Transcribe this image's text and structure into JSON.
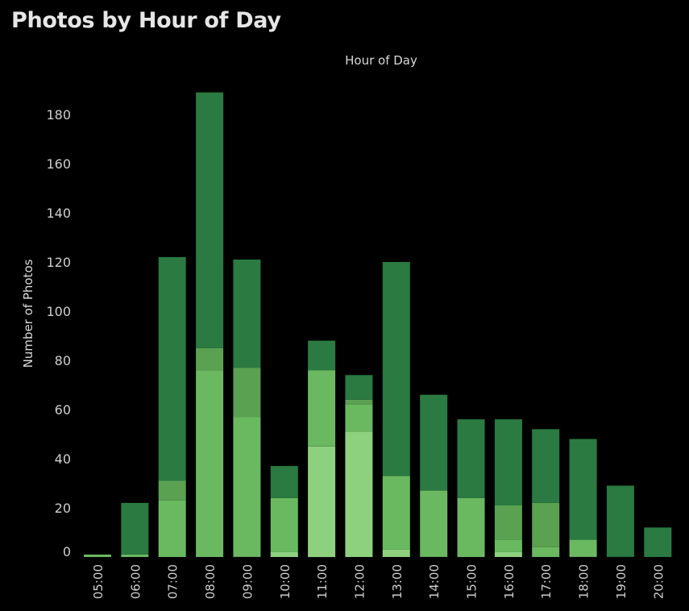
{
  "title": "Photos by Hour of Day",
  "chart_data": {
    "type": "bar",
    "stacked": true,
    "title": "Photos by Hour of Day",
    "xlabel": "Hour of Day",
    "ylabel": "Number of Photos",
    "ylim": [
      0,
      190
    ],
    "yticks": [
      0,
      20,
      40,
      60,
      80,
      100,
      120,
      140,
      160,
      180
    ],
    "grid": false,
    "legend": "none",
    "categories": [
      "05:00",
      "06:00",
      "07:00",
      "08:00",
      "09:00",
      "10:00",
      "11:00",
      "12:00",
      "13:00",
      "14:00",
      "15:00",
      "16:00",
      "17:00",
      "18:00",
      "19:00",
      "20:00"
    ],
    "series": [
      {
        "color": "#8dd17e",
        "values": [
          0,
          0,
          0,
          0,
          0,
          2,
          45,
          51,
          3,
          0,
          0,
          2,
          0,
          0,
          0,
          0
        ]
      },
      {
        "color": "#6ab961",
        "values": [
          1,
          1,
          23,
          76,
          57,
          22,
          31,
          11,
          30,
          27,
          24,
          5,
          4,
          7,
          0,
          0
        ]
      },
      {
        "color": "#5aa152",
        "values": [
          0,
          0,
          8,
          9,
          20,
          0,
          0,
          2,
          0,
          0,
          0,
          14,
          18,
          0,
          0,
          0
        ]
      },
      {
        "color": "#2a7a41",
        "values": [
          0,
          21,
          91,
          104,
          44,
          13,
          12,
          10,
          87,
          39,
          32,
          35,
          30,
          41,
          29,
          12
        ]
      }
    ],
    "totals": [
      1,
      22,
      122,
      189,
      121,
      37,
      88,
      74,
      120,
      66,
      56,
      56,
      52,
      48,
      29,
      12
    ]
  }
}
